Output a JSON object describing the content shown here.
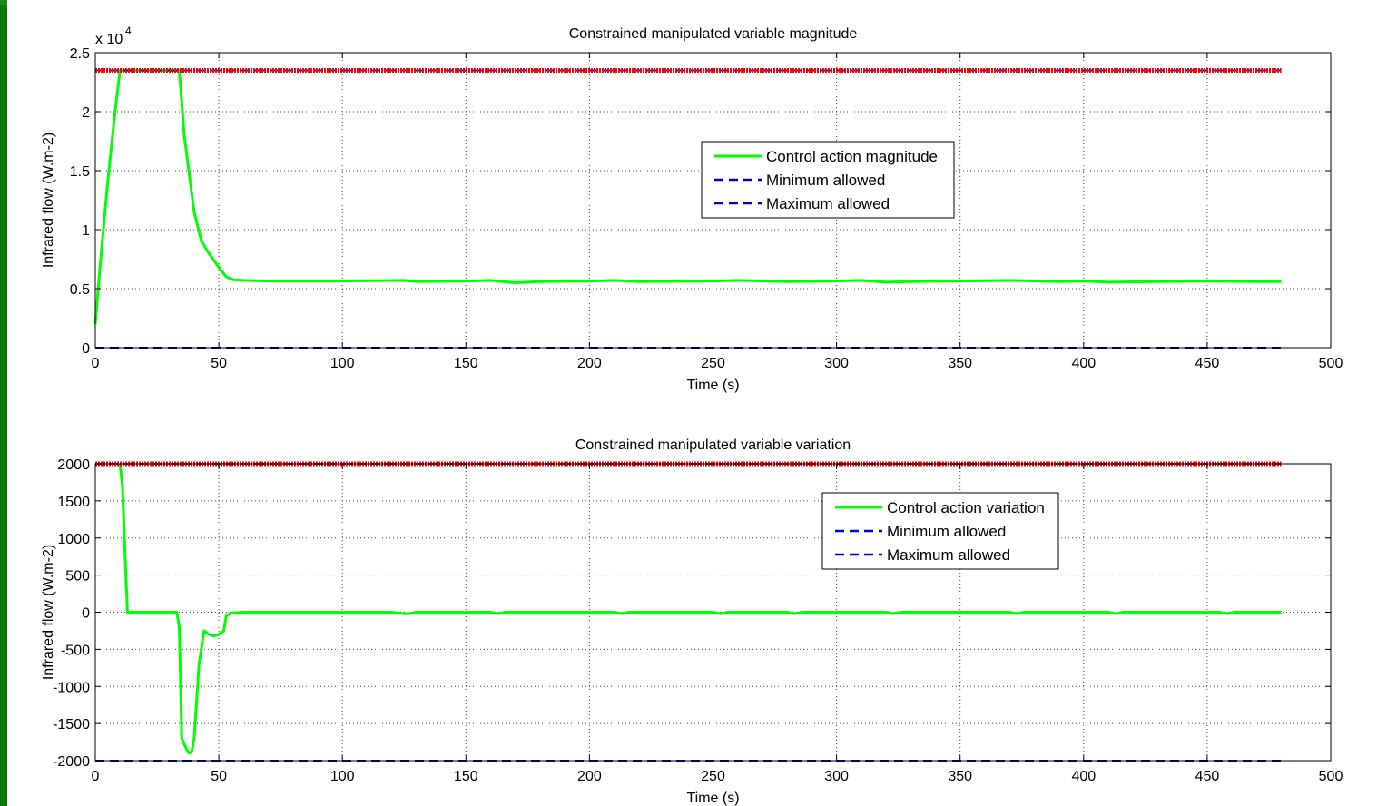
{
  "chart_data": [
    {
      "type": "line",
      "title": "Constrained manipulated variable magnitude",
      "xlabel": "Time (s)",
      "ylabel": "Infrared flow (W.m-2)",
      "y_exponent_label": "x 10",
      "y_exponent": "4",
      "xlim": [
        0,
        500
      ],
      "ylim": [
        0,
        25000
      ],
      "xticks": [
        0,
        50,
        100,
        150,
        200,
        250,
        300,
        350,
        400,
        450,
        500
      ],
      "xtick_labels": [
        "0",
        "50",
        "100",
        "150",
        "200",
        "250",
        "300",
        "350",
        "400",
        "450",
        "500"
      ],
      "yticks": [
        0,
        5000,
        10000,
        15000,
        20000,
        25000
      ],
      "ytick_labels": [
        "0",
        "0.5",
        "1",
        "1.5",
        "2",
        "2.5"
      ],
      "grid": true,
      "legend_position": "upper-center-right",
      "series": [
        {
          "name": "Control action magnitude",
          "color": "#00ff00",
          "style": "solid",
          "x": [
            0,
            2,
            5,
            8,
            10,
            12,
            14,
            20,
            30,
            34,
            36,
            40,
            43,
            46,
            50,
            53,
            56,
            60,
            70,
            100,
            125,
            130,
            150,
            160,
            170,
            180,
            200,
            210,
            220,
            250,
            260,
            280,
            300,
            310,
            320,
            330,
            350,
            370,
            390,
            400,
            410,
            430,
            450,
            470,
            480
          ],
          "y": [
            2000,
            7000,
            14000,
            20000,
            23500,
            23500,
            23500,
            23500,
            23500,
            23500,
            18000,
            11500,
            9000,
            8000,
            6800,
            6000,
            5750,
            5700,
            5650,
            5650,
            5700,
            5600,
            5650,
            5700,
            5500,
            5600,
            5650,
            5700,
            5600,
            5650,
            5700,
            5600,
            5650,
            5700,
            5550,
            5600,
            5650,
            5700,
            5600,
            5650,
            5550,
            5600,
            5650,
            5600,
            5600
          ]
        },
        {
          "name": "Minimum allowed",
          "color": "#0000cc",
          "style": "dashed",
          "x": [
            0,
            480
          ],
          "y": [
            0,
            0
          ]
        },
        {
          "name": "Maximum allowed",
          "color": "#0000cc",
          "style": "dashed",
          "x": [
            0,
            480
          ],
          "y": [
            23500,
            23500
          ]
        }
      ],
      "upper_limit_marker_color": "#ff0000"
    },
    {
      "type": "line",
      "title": "Constrained manipulated variable variation",
      "xlabel": "Time (s)",
      "ylabel": "Infrared flow  (W.m-2)",
      "xlim": [
        0,
        500
      ],
      "ylim": [
        -2000,
        2000
      ],
      "xticks": [
        0,
        50,
        100,
        150,
        200,
        250,
        300,
        350,
        400,
        450,
        500
      ],
      "xtick_labels": [
        "0",
        "50",
        "100",
        "150",
        "200",
        "250",
        "300",
        "350",
        "400",
        "450",
        "500"
      ],
      "yticks": [
        -2000,
        -1500,
        -1000,
        -500,
        0,
        500,
        1000,
        1500,
        2000
      ],
      "ytick_labels": [
        "-2000",
        "-1500",
        "-1000",
        "-500",
        "0",
        "500",
        "1000",
        "1500",
        "2000"
      ],
      "grid": true,
      "legend_position": "upper-right",
      "series": [
        {
          "name": "Control action variation",
          "color": "#00ff00",
          "style": "solid",
          "x": [
            10,
            11,
            12,
            13,
            14,
            33,
            34,
            35,
            37,
            38,
            39,
            40,
            41,
            42,
            44,
            46,
            48,
            50,
            52,
            53,
            55,
            60,
            80,
            120,
            125,
            127,
            130,
            160,
            163,
            166,
            210,
            213,
            216,
            250,
            253,
            256,
            280,
            283,
            286,
            320,
            323,
            326,
            370,
            373,
            376,
            410,
            413,
            416,
            455,
            458,
            461,
            480
          ],
          "y": [
            2000,
            1700,
            800,
            0,
            0,
            0,
            -200,
            -1700,
            -1850,
            -1900,
            -1880,
            -1700,
            -1200,
            -700,
            -250,
            -300,
            -320,
            -300,
            -250,
            -50,
            -10,
            0,
            0,
            0,
            -20,
            -20,
            0,
            0,
            -20,
            0,
            0,
            -20,
            0,
            0,
            -20,
            0,
            0,
            -20,
            0,
            0,
            -20,
            0,
            0,
            -20,
            0,
            0,
            -20,
            0,
            0,
            -20,
            0,
            0
          ]
        },
        {
          "name": "Minimum allowed",
          "color": "#0000cc",
          "style": "dashed",
          "x": [
            0,
            480
          ],
          "y": [
            -2000,
            -2000
          ]
        },
        {
          "name": "Maximum allowed",
          "color": "#0000cc",
          "style": "dashed",
          "x": [
            0,
            480
          ],
          "y": [
            2000,
            2000
          ]
        }
      ],
      "upper_limit_marker_color": "#ff0000"
    }
  ]
}
